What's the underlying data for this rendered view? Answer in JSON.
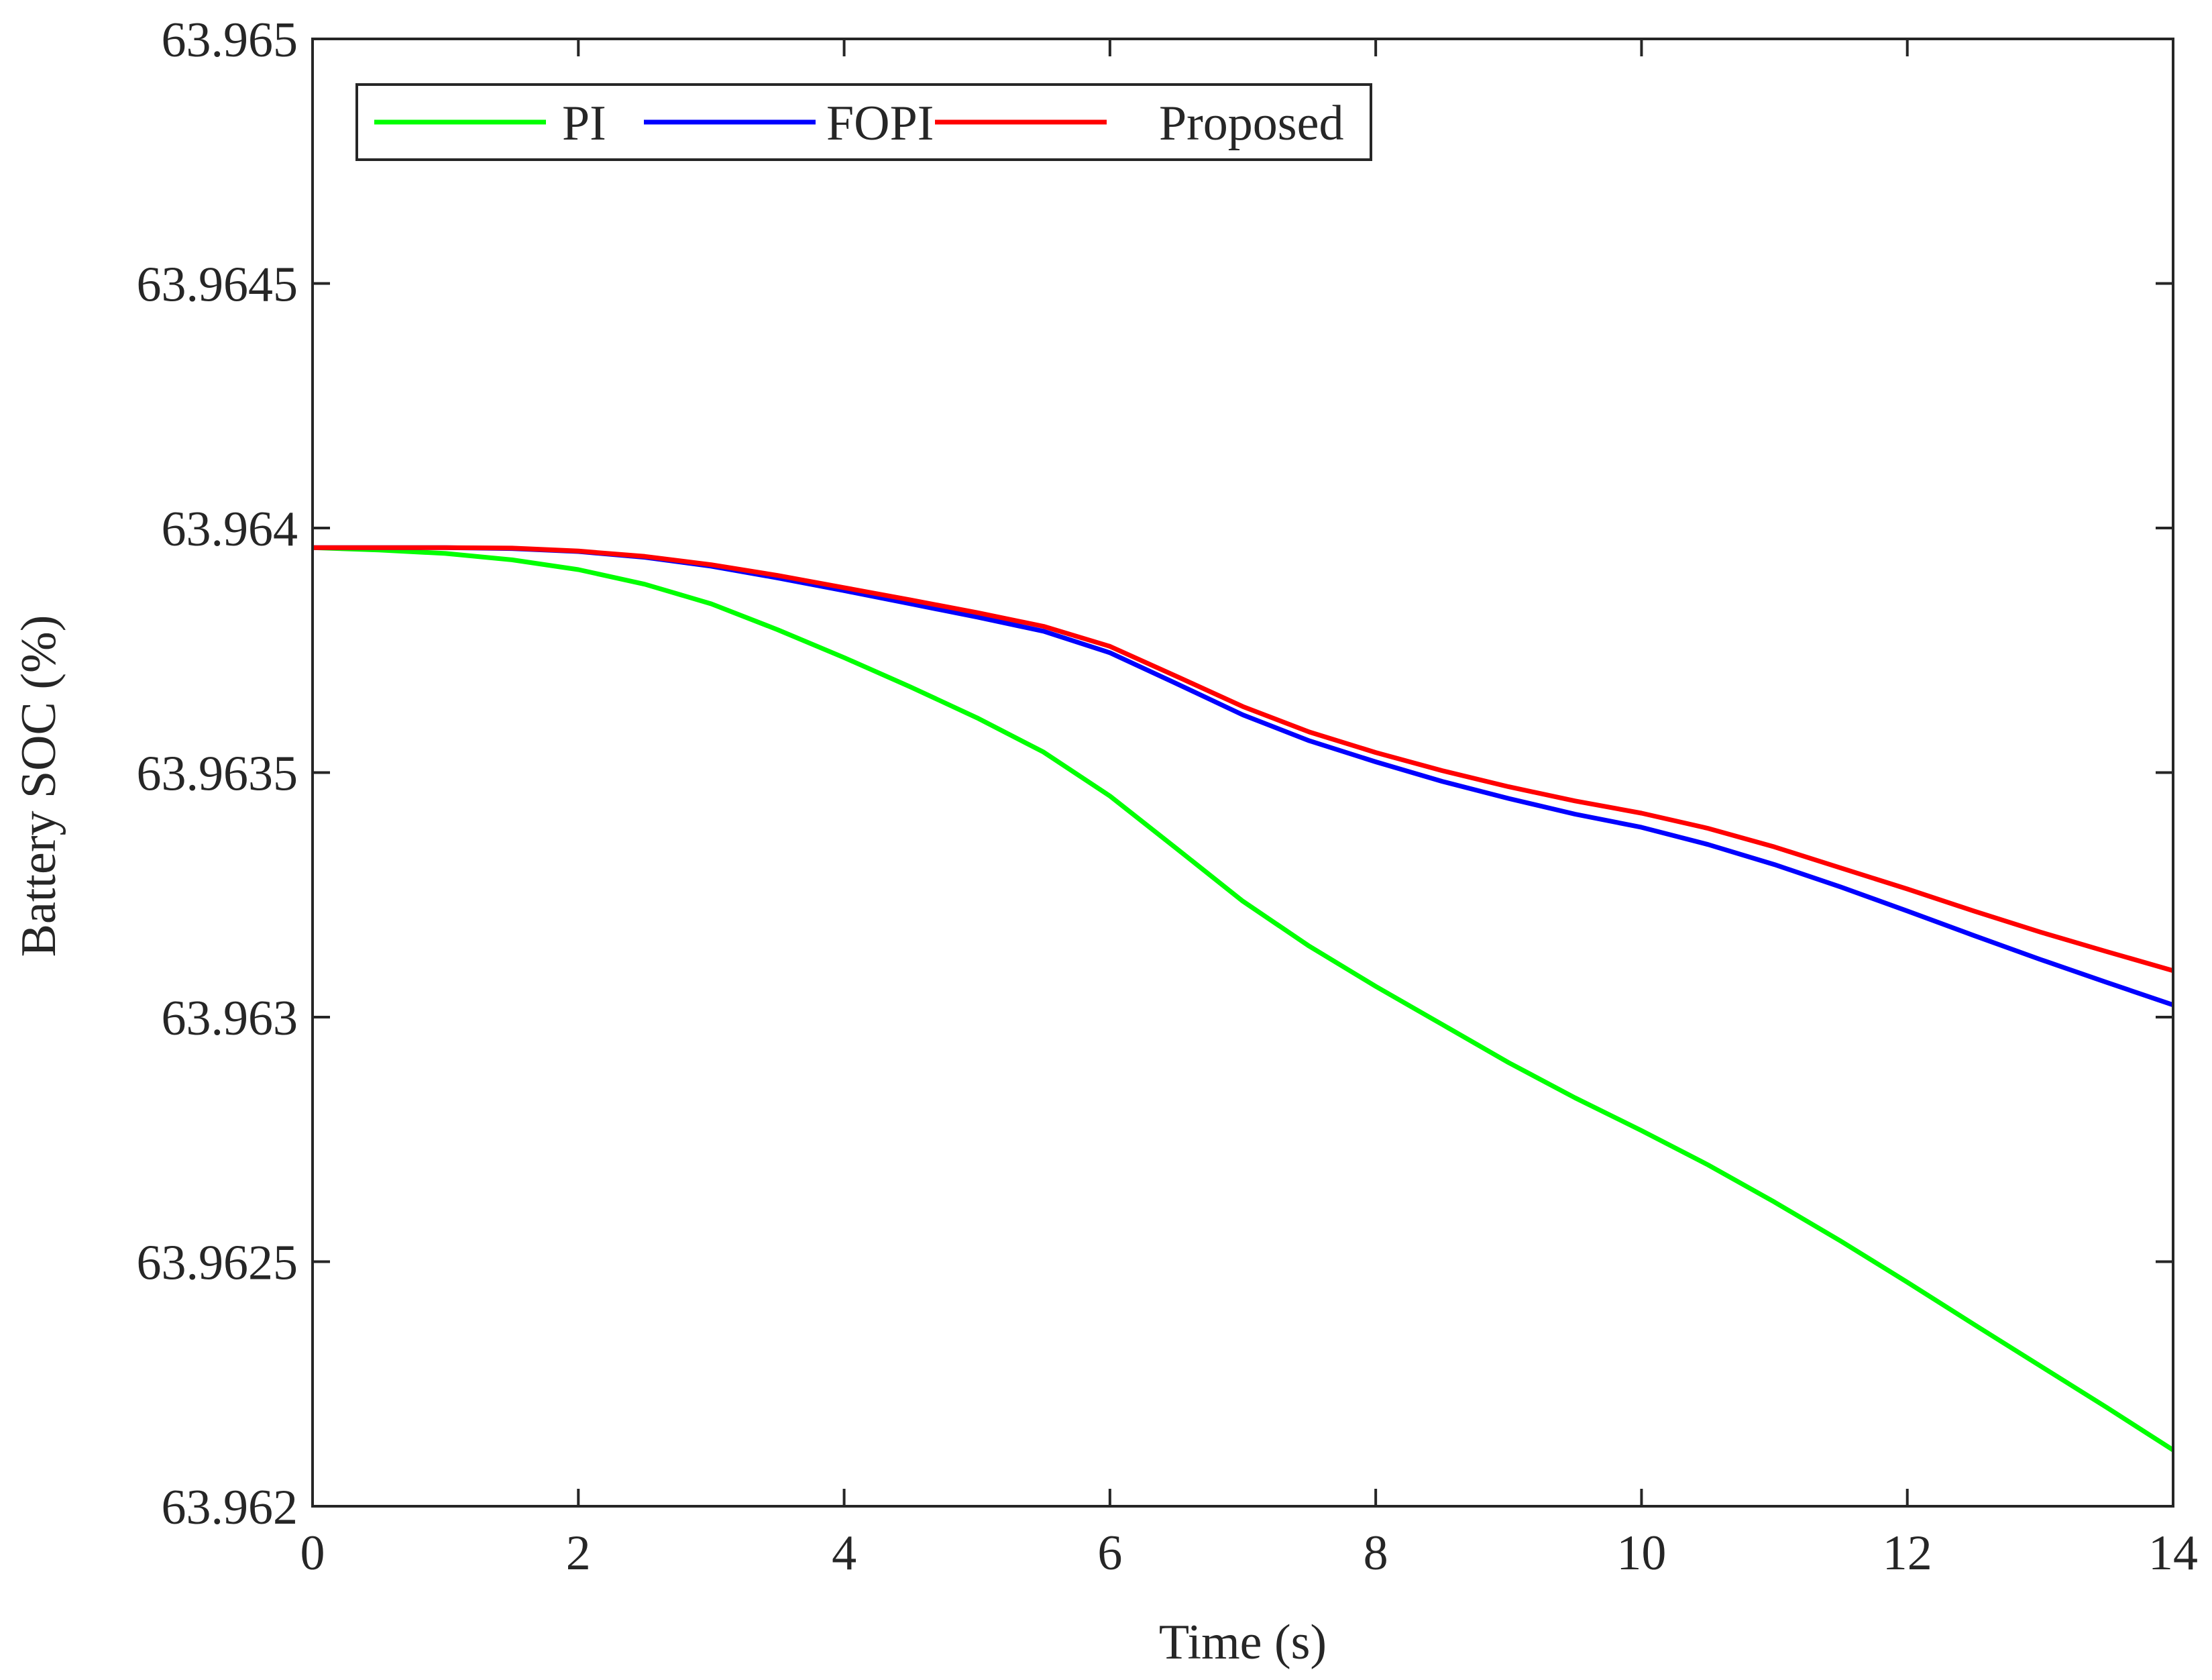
{
  "chart_data": {
    "type": "line",
    "title": "",
    "xlabel": "Time (s)",
    "ylabel": "Battery SOC (%)",
    "xlim": [
      0,
      14
    ],
    "ylim": [
      63.962,
      63.965
    ],
    "x_ticks": [
      0,
      2,
      4,
      6,
      8,
      10,
      12,
      14
    ],
    "x_tick_labels": [
      "0",
      "2",
      "4",
      "6",
      "8",
      "10",
      "12",
      "14"
    ],
    "y_ticks": [
      63.962,
      63.9625,
      63.963,
      63.9635,
      63.964,
      63.9645,
      63.965
    ],
    "y_tick_labels": [
      "63.962",
      "63.9625",
      "63.963",
      "63.9635",
      "63.964",
      "63.9645",
      "63.965"
    ],
    "grid": false,
    "box": true,
    "legend": {
      "placement": "top-left",
      "orientation": "horizontal"
    },
    "series": [
      {
        "name": "PI",
        "color": "#00ff00",
        "points": [
          [
            0,
            63.96396
          ],
          [
            0.5,
            63.963955
          ],
          [
            1,
            63.963948
          ],
          [
            1.5,
            63.963935
          ],
          [
            2,
            63.963915
          ],
          [
            2.5,
            63.963885
          ],
          [
            3,
            63.963845
          ],
          [
            3.5,
            63.963792
          ],
          [
            4,
            63.963735
          ],
          [
            4.5,
            63.963675
          ],
          [
            5,
            63.963612
          ],
          [
            5.5,
            63.963542
          ],
          [
            6,
            63.963452
          ],
          [
            6.5,
            63.963345
          ],
          [
            7,
            63.963237
          ],
          [
            7.5,
            63.963145
          ],
          [
            8,
            63.963063
          ],
          [
            8.5,
            63.962985
          ],
          [
            9,
            63.962907
          ],
          [
            9.5,
            63.962835
          ],
          [
            10,
            63.962768
          ],
          [
            10.5,
            63.962698
          ],
          [
            11,
            63.962622
          ],
          [
            11.5,
            63.962542
          ],
          [
            12,
            63.962458
          ],
          [
            12.5,
            63.962372
          ],
          [
            13,
            63.962287
          ],
          [
            13.5,
            63.962202
          ],
          [
            14,
            63.962115
          ]
        ]
      },
      {
        "name": "FOPI",
        "color": "#0000ff",
        "points": [
          [
            0,
            63.96396
          ],
          [
            0.5,
            63.96396
          ],
          [
            1,
            63.96396
          ],
          [
            1.5,
            63.963958
          ],
          [
            2,
            63.963952
          ],
          [
            2.5,
            63.96394
          ],
          [
            3,
            63.963922
          ],
          [
            3.5,
            63.963898
          ],
          [
            4,
            63.963872
          ],
          [
            4.5,
            63.963845
          ],
          [
            5,
            63.963818
          ],
          [
            5.5,
            63.963789
          ],
          [
            6,
            63.963745
          ],
          [
            6.5,
            63.963682
          ],
          [
            7,
            63.963618
          ],
          [
            7.5,
            63.963565
          ],
          [
            8,
            63.963522
          ],
          [
            8.5,
            63.963482
          ],
          [
            9,
            63.963447
          ],
          [
            9.5,
            63.963415
          ],
          [
            10,
            63.963388
          ],
          [
            10.5,
            63.963353
          ],
          [
            11,
            63.963312
          ],
          [
            11.5,
            63.963266
          ],
          [
            12,
            63.963217
          ],
          [
            12.5,
            63.963167
          ],
          [
            13,
            63.963118
          ],
          [
            13.5,
            63.963071
          ],
          [
            14,
            63.963025
          ]
        ]
      },
      {
        "name": "Proposed",
        "color": "#ff0000",
        "points": [
          [
            0,
            63.96396
          ],
          [
            0.5,
            63.96396
          ],
          [
            1,
            63.96396
          ],
          [
            1.5,
            63.963959
          ],
          [
            2,
            63.963953
          ],
          [
            2.5,
            63.963942
          ],
          [
            3,
            63.963925
          ],
          [
            3.5,
            63.963903
          ],
          [
            4,
            63.963878
          ],
          [
            4.5,
            63.963853
          ],
          [
            5,
            63.963827
          ],
          [
            5.5,
            63.963799
          ],
          [
            6,
            63.963758
          ],
          [
            6.5,
            63.963697
          ],
          [
            7,
            63.963635
          ],
          [
            7.5,
            63.963583
          ],
          [
            8,
            63.963541
          ],
          [
            8.5,
            63.963504
          ],
          [
            9,
            63.963471
          ],
          [
            9.5,
            63.963442
          ],
          [
            10,
            63.963417
          ],
          [
            10.5,
            63.963386
          ],
          [
            11,
            63.963348
          ],
          [
            11.5,
            63.963305
          ],
          [
            12,
            63.963262
          ],
          [
            12.5,
            63.963217
          ],
          [
            13,
            63.963174
          ],
          [
            13.5,
            63.963134
          ],
          [
            14,
            63.963095
          ]
        ]
      }
    ]
  }
}
